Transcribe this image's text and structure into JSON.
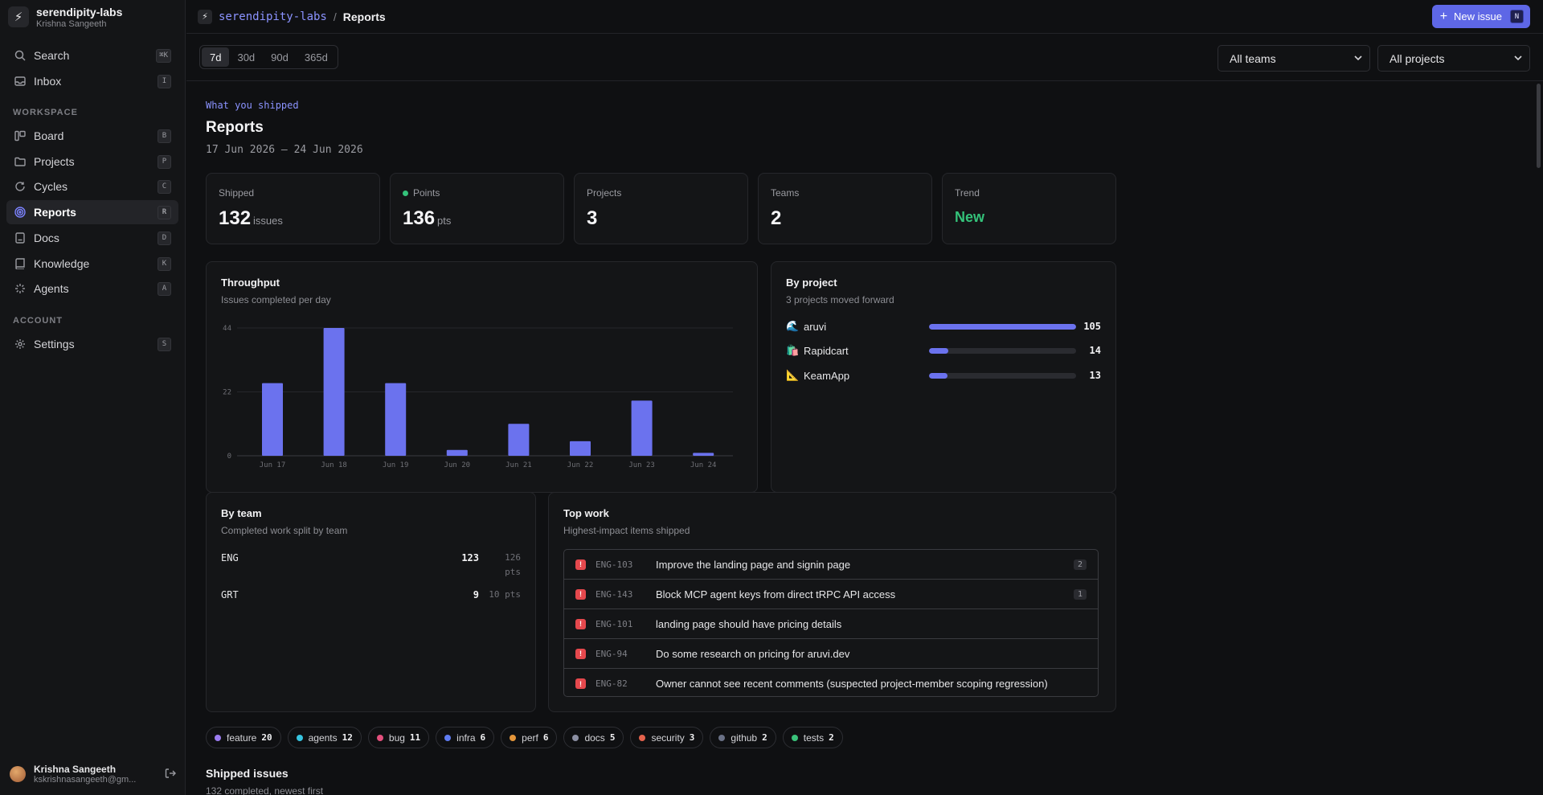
{
  "workspace": {
    "name": "serendipity-labs",
    "user": "Krishna Sangeeth",
    "logo_icon": "lightning-icon"
  },
  "nav": {
    "top": [
      {
        "label": "Search",
        "shortcut": "⌘K",
        "icon": "search-icon"
      },
      {
        "label": "Inbox",
        "shortcut": "I",
        "icon": "inbox-icon"
      }
    ],
    "workspace_label": "WORKSPACE",
    "workspace": [
      {
        "label": "Board",
        "shortcut": "B",
        "icon": "board-icon"
      },
      {
        "label": "Projects",
        "shortcut": "P",
        "icon": "folder-icon"
      },
      {
        "label": "Cycles",
        "shortcut": "C",
        "icon": "cycle-icon"
      },
      {
        "label": "Reports",
        "shortcut": "R",
        "icon": "target-icon",
        "active": true
      },
      {
        "label": "Docs",
        "shortcut": "D",
        "icon": "doc-icon"
      },
      {
        "label": "Knowledge",
        "shortcut": "K",
        "icon": "book-icon"
      },
      {
        "label": "Agents",
        "shortcut": "A",
        "icon": "sparkle-icon"
      }
    ],
    "account_label": "ACCOUNT",
    "account": [
      {
        "label": "Settings",
        "shortcut": "S",
        "icon": "gear-icon"
      }
    ]
  },
  "footer": {
    "name": "Krishna Sangeeth",
    "email": "kskrishnasangeeth@gm..."
  },
  "breadcrumb": {
    "workspace": "serendipity-labs",
    "separator": "/",
    "current": "Reports"
  },
  "new_issue": {
    "label": "New issue",
    "shortcut": "N"
  },
  "ranges": [
    "7d",
    "30d",
    "90d",
    "365d"
  ],
  "active_range": "7d",
  "filters": {
    "teams": "All teams",
    "projects": "All projects"
  },
  "header": {
    "eyebrow": "What you shipped",
    "title": "Reports",
    "date_range": "17 Jun 2026 — 24 Jun 2026"
  },
  "stats": {
    "shipped": {
      "label": "Shipped",
      "value": "132",
      "unit": "issues"
    },
    "points": {
      "label": "Points",
      "value": "136",
      "unit": "pts"
    },
    "projects": {
      "label": "Projects",
      "value": "3"
    },
    "teams": {
      "label": "Teams",
      "value": "2"
    },
    "trend": {
      "label": "Trend",
      "value": "New"
    }
  },
  "throughput": {
    "title": "Throughput",
    "subtitle": "Issues completed per day"
  },
  "chart_data": {
    "type": "bar",
    "categories": [
      "Jun 17",
      "Jun 18",
      "Jun 19",
      "Jun 20",
      "Jun 21",
      "Jun 22",
      "Jun 23",
      "Jun 24"
    ],
    "values": [
      25,
      44,
      25,
      2,
      11,
      5,
      19,
      1
    ],
    "yticks": [
      0,
      22,
      44
    ],
    "ylim": [
      0,
      44
    ],
    "grid": true,
    "color": "#6b72ee"
  },
  "by_project": {
    "title": "By project",
    "subtitle": "3 projects moved forward",
    "items": [
      {
        "icon": "🌊",
        "name": "aruvi",
        "value": 105
      },
      {
        "icon": "🛍️",
        "name": "Rapidcart",
        "value": 14
      },
      {
        "icon": "📐",
        "name": "KeamApp",
        "value": 13
      }
    ]
  },
  "by_team": {
    "title": "By team",
    "subtitle": "Completed work split by team",
    "items": [
      {
        "name": "ENG",
        "count": "123",
        "pts_value": "126",
        "pts_unit": "pts"
      },
      {
        "name": "GRT",
        "count": "9",
        "pts": "10 pts"
      }
    ]
  },
  "top_work": {
    "title": "Top work",
    "subtitle": "Highest-impact items shipped",
    "items": [
      {
        "id": "ENG-103",
        "title": "Improve the landing page and signin page",
        "count": "2"
      },
      {
        "id": "ENG-143",
        "title": "Block MCP agent keys from direct tRPC API access",
        "count": "1"
      },
      {
        "id": "ENG-101",
        "title": "landing page should have pricing details"
      },
      {
        "id": "ENG-94",
        "title": "Do some research on pricing for aruvi.dev"
      },
      {
        "id": "ENG-82",
        "title": "Owner cannot see recent comments (suspected project-member scoping regression)"
      }
    ],
    "priority_glyph": "!"
  },
  "labels": [
    {
      "name": "feature",
      "count": "20",
      "color": "#9b7cf0"
    },
    {
      "name": "agents",
      "count": "12",
      "color": "#37c5e0"
    },
    {
      "name": "bug",
      "count": "11",
      "color": "#e4507d"
    },
    {
      "name": "infra",
      "count": "6",
      "color": "#5f7cf2"
    },
    {
      "name": "perf",
      "count": "6",
      "color": "#e5963a"
    },
    {
      "name": "docs",
      "count": "5",
      "color": "#8b8fa3"
    },
    {
      "name": "security",
      "count": "3",
      "color": "#e5634d"
    },
    {
      "name": "github",
      "count": "2",
      "color": "#6a7186"
    },
    {
      "name": "tests",
      "count": "2",
      "color": "#3ac27a"
    }
  ],
  "shipped_issues": {
    "title": "Shipped issues",
    "subtitle": "132 completed, newest first"
  }
}
